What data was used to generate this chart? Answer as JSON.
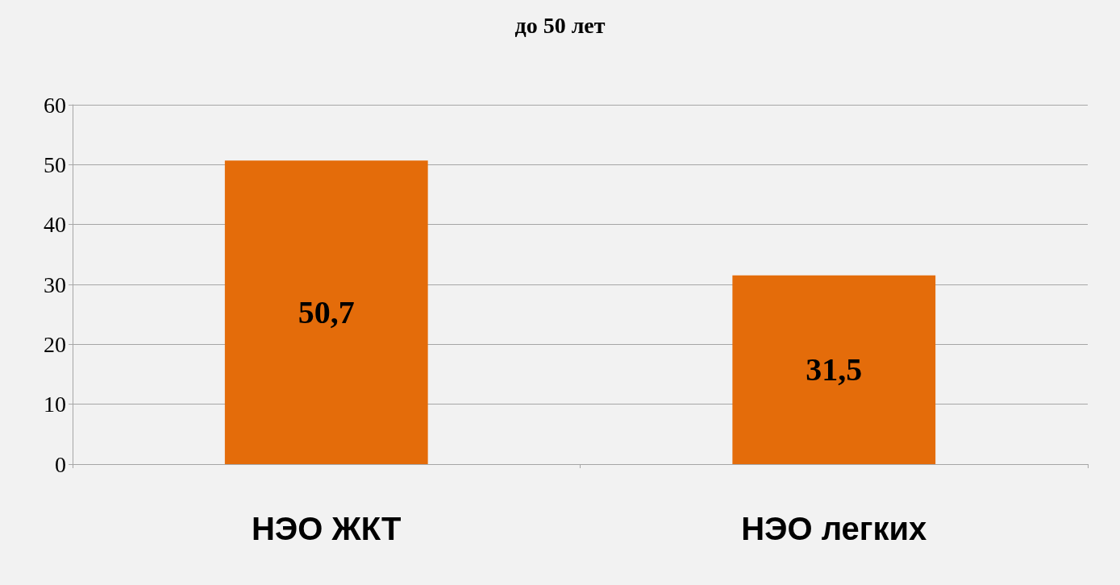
{
  "chart_data": {
    "type": "bar",
    "title": "до 50 лет",
    "categories": [
      "НЭО ЖКТ",
      "НЭО легких"
    ],
    "values": [
      50.7,
      31.5
    ],
    "value_labels": [
      "50,7",
      "31,5"
    ],
    "color": "#e46c0a",
    "ylim": [
      0,
      60
    ],
    "yticks": [
      0,
      10,
      20,
      30,
      40,
      50,
      60
    ],
    "grid": "y"
  }
}
